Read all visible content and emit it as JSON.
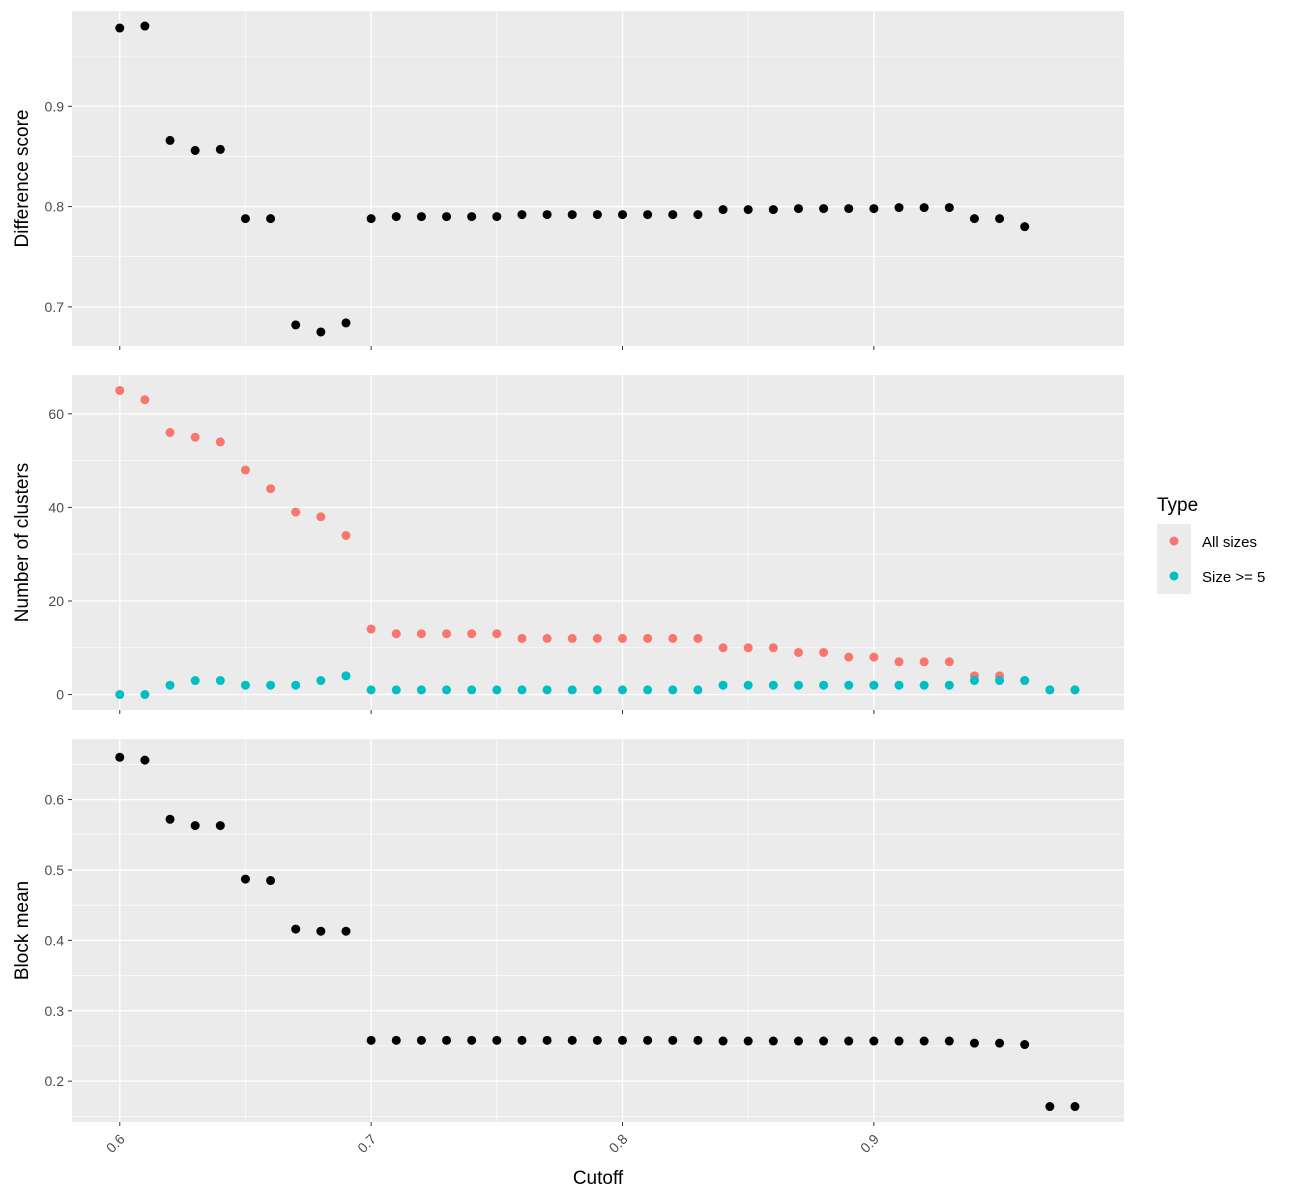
{
  "chart_data": {
    "type": "scatter",
    "xlabel": "Cutoff",
    "x_ticks": [
      "0.6",
      "0.7",
      "0.8",
      "0.9"
    ],
    "xlim": [
      0.581,
      0.9995
    ],
    "panels": [
      {
        "ylabel": "Difference score",
        "ylim": [
          0.661,
          0.995
        ],
        "y_ticks": [
          "0.7",
          "0.8",
          "0.9"
        ],
        "series": [
          {
            "color": "#000000",
            "x": [
              0.6,
              0.61,
              0.62,
              0.63,
              0.64,
              0.65,
              0.66,
              0.67,
              0.68,
              0.69,
              0.7,
              0.71,
              0.72,
              0.73,
              0.74,
              0.75,
              0.76,
              0.77,
              0.78,
              0.79,
              0.8,
              0.81,
              0.82,
              0.83,
              0.84,
              0.85,
              0.86,
              0.87,
              0.88,
              0.89,
              0.9,
              0.91,
              0.92,
              0.93,
              0.94,
              0.95,
              0.96
            ],
            "y": [
              0.978,
              0.98,
              0.866,
              0.856,
              0.857,
              0.788,
              0.788,
              0.682,
              0.675,
              0.684,
              0.788,
              0.79,
              0.79,
              0.79,
              0.79,
              0.79,
              0.792,
              0.792,
              0.792,
              0.792,
              0.792,
              0.792,
              0.792,
              0.792,
              0.797,
              0.797,
              0.797,
              0.798,
              0.798,
              0.798,
              0.798,
              0.799,
              0.799,
              0.799,
              0.788,
              0.788,
              0.78
            ]
          }
        ]
      },
      {
        "ylabel": "Number of clusters",
        "ylim": [
          -3.3,
          68.3
        ],
        "y_ticks": [
          "0",
          "20",
          "40",
          "60"
        ],
        "series": [
          {
            "name": "All sizes",
            "color": "#F8766D",
            "x": [
              0.6,
              0.61,
              0.62,
              0.63,
              0.64,
              0.65,
              0.66,
              0.67,
              0.68,
              0.69,
              0.7,
              0.71,
              0.72,
              0.73,
              0.74,
              0.75,
              0.76,
              0.77,
              0.78,
              0.79,
              0.8,
              0.81,
              0.82,
              0.83,
              0.84,
              0.85,
              0.86,
              0.87,
              0.88,
              0.89,
              0.9,
              0.91,
              0.92,
              0.93,
              0.94,
              0.95,
              0.96,
              0.97,
              0.98
            ],
            "y": [
              65,
              63,
              56,
              55,
              54,
              48,
              44,
              39,
              38,
              34,
              14,
              13,
              13,
              13,
              13,
              13,
              12,
              12,
              12,
              12,
              12,
              12,
              12,
              12,
              10,
              10,
              10,
              9,
              9,
              8,
              8,
              7,
              7,
              7,
              4,
              4,
              3,
              1,
              1
            ]
          },
          {
            "name": "Size >= 5",
            "color": "#00BFC4",
            "x": [
              0.6,
              0.61,
              0.62,
              0.63,
              0.64,
              0.65,
              0.66,
              0.67,
              0.68,
              0.69,
              0.7,
              0.71,
              0.72,
              0.73,
              0.74,
              0.75,
              0.76,
              0.77,
              0.78,
              0.79,
              0.8,
              0.81,
              0.82,
              0.83,
              0.84,
              0.85,
              0.86,
              0.87,
              0.88,
              0.89,
              0.9,
              0.91,
              0.92,
              0.93,
              0.94,
              0.95,
              0.96,
              0.97,
              0.98
            ],
            "y": [
              0,
              0,
              2,
              3,
              3,
              2,
              2,
              2,
              3,
              4,
              1,
              1,
              1,
              1,
              1,
              1,
              1,
              1,
              1,
              1,
              1,
              1,
              1,
              1,
              2,
              2,
              2,
              2,
              2,
              2,
              2,
              2,
              2,
              2,
              3,
              3,
              3,
              1,
              1
            ]
          }
        ]
      },
      {
        "ylabel": "Block mean",
        "ylim": [
          0.142,
          0.686
        ],
        "y_ticks": [
          "0.2",
          "0.3",
          "0.4",
          "0.5",
          "0.6"
        ],
        "series": [
          {
            "color": "#000000",
            "x": [
              0.6,
              0.61,
              0.62,
              0.63,
              0.64,
              0.65,
              0.66,
              0.67,
              0.68,
              0.69,
              0.7,
              0.71,
              0.72,
              0.73,
              0.74,
              0.75,
              0.76,
              0.77,
              0.78,
              0.79,
              0.8,
              0.81,
              0.82,
              0.83,
              0.84,
              0.85,
              0.86,
              0.87,
              0.88,
              0.89,
              0.9,
              0.91,
              0.92,
              0.93,
              0.94,
              0.95,
              0.96,
              0.97,
              0.98
            ],
            "y": [
              0.66,
              0.656,
              0.572,
              0.563,
              0.563,
              0.487,
              0.485,
              0.416,
              0.413,
              0.413,
              0.258,
              0.258,
              0.258,
              0.258,
              0.258,
              0.258,
              0.258,
              0.258,
              0.258,
              0.258,
              0.258,
              0.258,
              0.258,
              0.258,
              0.257,
              0.257,
              0.257,
              0.257,
              0.257,
              0.257,
              0.257,
              0.257,
              0.257,
              0.257,
              0.254,
              0.254,
              0.252,
              0.164,
              0.164
            ]
          }
        ]
      }
    ],
    "legend": {
      "title": "Type",
      "position": "right",
      "items": [
        {
          "label": "All sizes",
          "color": "#F8766D"
        },
        {
          "label": "Size >= 5",
          "color": "#00BFC4"
        }
      ]
    },
    "grid": true,
    "panel_background": "#EBEBEB",
    "grid_color": "#FFFFFF"
  }
}
